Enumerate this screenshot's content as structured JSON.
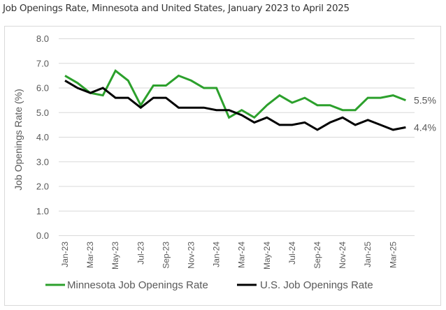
{
  "chart_data": {
    "type": "line",
    "title": "Job Openings Rate, Minnesota and United States, January 2023 to April 2025",
    "xlabel": "",
    "ylabel": "Job Openings Rate (%)",
    "ylim": [
      0,
      8
    ],
    "yticks": [
      "0.0",
      "1.0",
      "2.0",
      "3.0",
      "4.0",
      "5.0",
      "6.0",
      "7.0",
      "8.0"
    ],
    "grid": true,
    "legend_position": "bottom",
    "x": [
      "Jan-23",
      "Feb-23",
      "Mar-23",
      "Apr-23",
      "May-23",
      "Jun-23",
      "Jul-23",
      "Aug-23",
      "Sep-23",
      "Oct-23",
      "Nov-23",
      "Dec-23",
      "Jan-24",
      "Feb-24",
      "Mar-24",
      "Apr-24",
      "May-24",
      "Jun-24",
      "Jul-24",
      "Aug-24",
      "Sep-24",
      "Oct-24",
      "Nov-24",
      "Dec-24",
      "Jan-25",
      "Feb-25",
      "Mar-25",
      "Apr-25"
    ],
    "xtick_labels": [
      "Jan-23",
      "Mar-23",
      "May-23",
      "Jul-23",
      "Sep-23",
      "Nov-23",
      "Jan-24",
      "Mar-24",
      "May-24",
      "Jul-24",
      "Sep-24",
      "Nov-24",
      "Jan-25",
      "Mar-25"
    ],
    "series": [
      {
        "name": "Minnesota Job Openings Rate",
        "color": "#2ca02c",
        "end_label": "5.5%",
        "values": [
          6.5,
          6.2,
          5.8,
          5.7,
          6.7,
          6.3,
          5.3,
          6.1,
          6.1,
          6.5,
          6.3,
          6.0,
          6.0,
          4.8,
          5.1,
          4.8,
          5.3,
          5.7,
          5.4,
          5.6,
          5.3,
          5.3,
          5.1,
          5.1,
          5.6,
          5.6,
          5.7,
          5.5
        ]
      },
      {
        "name": "U.S. Job Openings Rate",
        "color": "#000000",
        "end_label": "4.4%",
        "values": [
          6.3,
          6.0,
          5.8,
          6.0,
          5.6,
          5.6,
          5.2,
          5.6,
          5.6,
          5.2,
          5.2,
          5.2,
          5.1,
          5.1,
          4.9,
          4.6,
          4.8,
          4.5,
          4.5,
          4.6,
          4.3,
          4.6,
          4.8,
          4.5,
          4.7,
          4.5,
          4.3,
          4.4
        ]
      }
    ]
  }
}
